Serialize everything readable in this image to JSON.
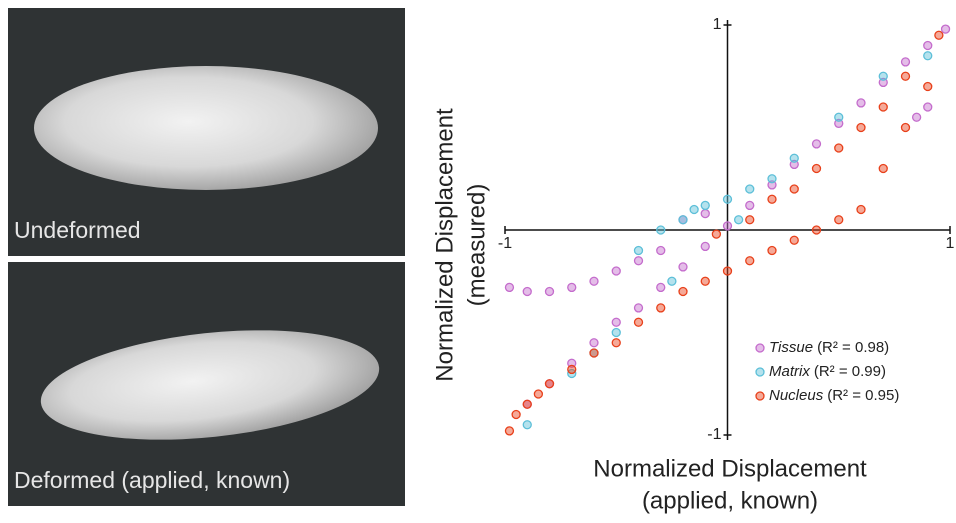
{
  "panels": [
    {
      "label": "Undeformed"
    },
    {
      "label": "Deformed (applied, known)"
    }
  ],
  "chart_data": {
    "type": "scatter",
    "xlabel": [
      "Normalized Displacement",
      "(applied, known)"
    ],
    "ylabel": [
      "Normalized Displacement",
      "(measured)"
    ],
    "xlim": [
      -1,
      1
    ],
    "ylim": [
      -1,
      1
    ],
    "xticks": [
      -1,
      1
    ],
    "yticks": [
      -1,
      1
    ],
    "series": [
      {
        "name": "Tissue",
        "r2_label": "(R² = 0.98)",
        "color": "#c46ccc",
        "x": [
          -0.98,
          -0.9,
          -0.8,
          -0.7,
          -0.6,
          -0.5,
          -0.4,
          -0.3,
          -0.9,
          -0.8,
          -0.7,
          -0.6,
          -0.5,
          -0.4,
          -0.3,
          -0.2,
          -0.1,
          0,
          0.1,
          0.2,
          0.3,
          0.4,
          0.5,
          0.6,
          0.7,
          0.8,
          0.9,
          0.98,
          0.85,
          0.9,
          -0.2,
          -0.1
        ],
        "values": [
          -0.28,
          -0.3,
          -0.3,
          -0.28,
          -0.25,
          -0.2,
          -0.15,
          -0.1,
          -0.85,
          -0.75,
          -0.65,
          -0.55,
          -0.45,
          -0.38,
          -0.28,
          -0.18,
          -0.08,
          0.02,
          0.12,
          0.22,
          0.32,
          0.42,
          0.52,
          0.62,
          0.72,
          0.82,
          0.9,
          0.98,
          0.55,
          0.6,
          0.05,
          0.08
        ]
      },
      {
        "name": "Matrix",
        "r2_label": "(R² = 0.99)",
        "color": "#5cbfd8",
        "x": [
          -0.9,
          -0.7,
          -0.5,
          -0.4,
          -0.3,
          -0.2,
          -0.15,
          -0.1,
          0,
          0.1,
          0.2,
          0.3,
          0.5,
          0.7,
          0.9,
          -0.6,
          -0.25,
          0.05
        ],
        "values": [
          -0.95,
          -0.7,
          -0.5,
          -0.1,
          0,
          0.05,
          0.1,
          0.12,
          0.15,
          0.2,
          0.25,
          0.35,
          0.55,
          0.75,
          0.85,
          -0.6,
          -0.25,
          0.05
        ]
      },
      {
        "name": "Nucleus",
        "r2_label": "(R² = 0.95)",
        "color": "#e8401a",
        "x": [
          -0.98,
          -0.95,
          -0.9,
          -0.85,
          -0.8,
          -0.7,
          -0.6,
          -0.5,
          -0.4,
          -0.3,
          -0.2,
          -0.1,
          0,
          0.1,
          0.2,
          0.3,
          0.3,
          0.4,
          0.4,
          0.5,
          0.5,
          0.6,
          0.6,
          0.7,
          0.7,
          0.8,
          0.8,
          0.9,
          0.95,
          0.2,
          0.1,
          -0.05
        ],
        "values": [
          -0.98,
          -0.9,
          -0.85,
          -0.8,
          -0.75,
          -0.68,
          -0.6,
          -0.55,
          -0.45,
          -0.38,
          -0.3,
          -0.25,
          -0.2,
          -0.15,
          -0.1,
          -0.05,
          0.2,
          0,
          0.3,
          0.05,
          0.4,
          0.1,
          0.5,
          0.3,
          0.6,
          0.5,
          0.75,
          0.7,
          0.95,
          0.15,
          0.05,
          -0.02
        ]
      }
    ]
  }
}
